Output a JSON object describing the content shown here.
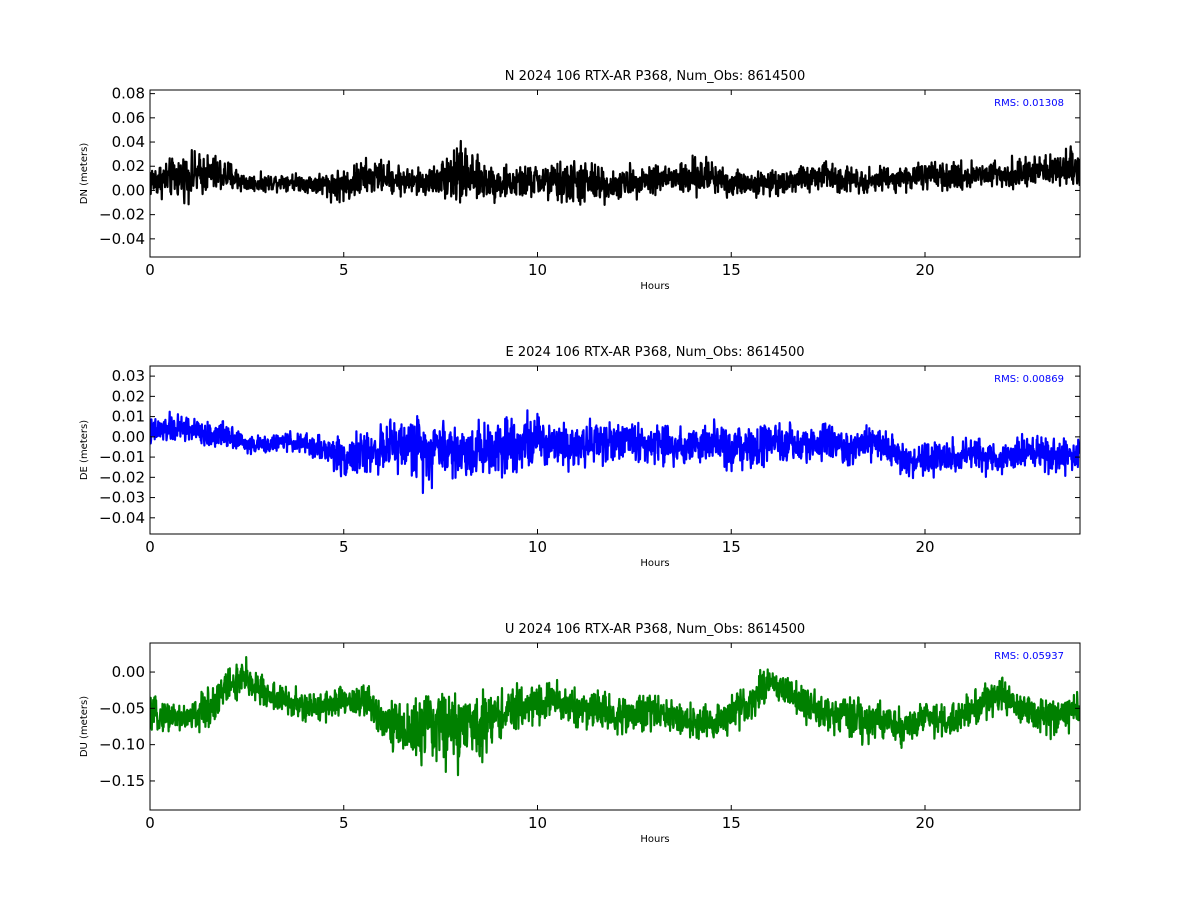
{
  "chart_data": [
    {
      "type": "line",
      "title": "N 2024 106 RTX-AR  P368, Num_Obs: 8614500",
      "xlabel": "Hours",
      "ylabel": "DN (meters)",
      "xlim": [
        0,
        24
      ],
      "ylim": [
        -0.055,
        0.083
      ],
      "xticks": [
        0,
        5,
        10,
        15,
        20
      ],
      "yticks": [
        -0.04,
        -0.02,
        0.0,
        0.02,
        0.04,
        0.06,
        0.08
      ],
      "ytick_labels": [
        "−0.04",
        "−0.02",
        "0.00",
        "0.02",
        "0.04",
        "0.06",
        "0.08"
      ],
      "annotation": "RMS:  0.01308",
      "color": "#000000",
      "series": [
        {
          "x": [
            0,
            0.5,
            1,
            1.5,
            2,
            2.5,
            3,
            3.5,
            4,
            4.5,
            5,
            5.5,
            6,
            6.5,
            7,
            7.5,
            7.9,
            8.3,
            9,
            9.5,
            10,
            10.5,
            11,
            11.5,
            12,
            12.5,
            13,
            13.5,
            14,
            14.5,
            15,
            15.5,
            16,
            16.5,
            17,
            17.5,
            18,
            18.5,
            19,
            19.5,
            20,
            20.5,
            21,
            21.5,
            22,
            22.5,
            23,
            23.5,
            24
          ],
          "mean": [
            0.008,
            0.01,
            0.012,
            0.014,
            0.012,
            0.006,
            0.006,
            0.008,
            0.006,
            0.005,
            0.004,
            0.01,
            0.012,
            0.008,
            0.006,
            0.01,
            0.015,
            0.01,
            0.006,
            0.006,
            0.008,
            0.006,
            0.006,
            0.006,
            0.004,
            0.008,
            0.01,
            0.01,
            0.01,
            0.012,
            0.006,
            0.006,
            0.006,
            0.008,
            0.01,
            0.012,
            0.01,
            0.008,
            0.01,
            0.01,
            0.012,
            0.01,
            0.012,
            0.014,
            0.014,
            0.014,
            0.016,
            0.018,
            0.02
          ],
          "amplitude": [
            0.02,
            0.022,
            0.026,
            0.024,
            0.02,
            0.01,
            0.01,
            0.01,
            0.01,
            0.015,
            0.02,
            0.022,
            0.018,
            0.018,
            0.016,
            0.018,
            0.045,
            0.025,
            0.02,
            0.018,
            0.02,
            0.024,
            0.028,
            0.024,
            0.016,
            0.018,
            0.018,
            0.018,
            0.022,
            0.022,
            0.016,
            0.014,
            0.014,
            0.014,
            0.016,
            0.018,
            0.016,
            0.014,
            0.014,
            0.014,
            0.016,
            0.016,
            0.016,
            0.016,
            0.016,
            0.016,
            0.018,
            0.018,
            0.024
          ]
        }
      ]
    },
    {
      "type": "line",
      "title": "E 2024 106 RTX-AR  P368, Num_Obs: 8614500",
      "xlabel": "Hours",
      "ylabel": "DE (meters)",
      "xlim": [
        0,
        24
      ],
      "ylim": [
        -0.048,
        0.035
      ],
      "xticks": [
        0,
        5,
        10,
        15,
        20
      ],
      "yticks": [
        -0.04,
        -0.03,
        -0.02,
        -0.01,
        0.0,
        0.01,
        0.02,
        0.03
      ],
      "ytick_labels": [
        "−0.04",
        "−0.03",
        "−0.02",
        "−0.01",
        "0.00",
        "0.01",
        "0.02",
        "0.03"
      ],
      "annotation": "RMS:  0.00869",
      "color": "#0000ff",
      "series": [
        {
          "x": [
            0,
            0.5,
            1,
            1.5,
            2,
            2.5,
            3,
            3.5,
            4,
            4.5,
            5,
            5.5,
            6,
            6.5,
            7,
            7.5,
            8,
            8.5,
            9,
            9.5,
            10,
            10.5,
            11,
            11.5,
            12,
            12.5,
            13,
            13.5,
            14,
            14.5,
            15,
            15.5,
            16,
            16.5,
            17,
            17.5,
            18,
            18.5,
            19,
            19.5,
            20,
            20.5,
            21,
            21.5,
            22,
            22.5,
            23,
            23.5,
            24
          ],
          "mean": [
            0.002,
            0.004,
            0.004,
            0.0,
            0.002,
            -0.004,
            -0.004,
            -0.002,
            -0.004,
            -0.006,
            -0.01,
            -0.008,
            -0.006,
            -0.004,
            -0.006,
            -0.004,
            -0.008,
            -0.006,
            -0.004,
            -0.002,
            -0.002,
            -0.002,
            -0.004,
            -0.002,
            -0.002,
            -0.002,
            -0.004,
            -0.004,
            -0.004,
            -0.004,
            -0.006,
            -0.006,
            -0.004,
            -0.004,
            -0.004,
            -0.002,
            -0.006,
            -0.004,
            -0.004,
            -0.012,
            -0.012,
            -0.01,
            -0.01,
            -0.01,
            -0.01,
            -0.008,
            -0.008,
            -0.01,
            -0.01
          ],
          "amplitude": [
            0.01,
            0.01,
            0.01,
            0.008,
            0.01,
            0.006,
            0.006,
            0.006,
            0.008,
            0.01,
            0.014,
            0.014,
            0.016,
            0.018,
            0.024,
            0.02,
            0.02,
            0.02,
            0.02,
            0.02,
            0.018,
            0.016,
            0.016,
            0.016,
            0.014,
            0.014,
            0.014,
            0.014,
            0.014,
            0.014,
            0.016,
            0.014,
            0.014,
            0.014,
            0.014,
            0.014,
            0.012,
            0.012,
            0.012,
            0.012,
            0.012,
            0.012,
            0.012,
            0.012,
            0.012,
            0.012,
            0.012,
            0.012,
            0.012
          ]
        }
      ]
    },
    {
      "type": "line",
      "title": "U 2024 106 RTX-AR  P368, Num_Obs: 8614500",
      "xlabel": "Hours",
      "ylabel": "DU (meters)",
      "xlim": [
        0,
        24
      ],
      "ylim": [
        -0.19,
        0.04
      ],
      "xticks": [
        0,
        5,
        10,
        15,
        20
      ],
      "yticks": [
        -0.15,
        -0.1,
        -0.05,
        0.0
      ],
      "ytick_labels": [
        "−0.15",
        "−0.10",
        "−0.05",
        "0.00"
      ],
      "annotation": "RMS:  0.05937",
      "color": "#008000",
      "series": [
        {
          "x": [
            0,
            0.5,
            1,
            1.5,
            2,
            2.5,
            3,
            3.5,
            4,
            4.5,
            5,
            5.5,
            6,
            6.5,
            7,
            7.5,
            8,
            8.5,
            9,
            9.5,
            10,
            10.5,
            11,
            11.5,
            12,
            12.5,
            13,
            13.5,
            14,
            14.5,
            15,
            15.5,
            16,
            16.5,
            17,
            17.5,
            18,
            18.5,
            19,
            19.5,
            20,
            20.5,
            21,
            21.5,
            22,
            22.5,
            23,
            23.5,
            24
          ],
          "mean": [
            -0.06,
            -0.06,
            -0.065,
            -0.05,
            -0.02,
            -0.01,
            -0.03,
            -0.04,
            -0.05,
            -0.045,
            -0.04,
            -0.04,
            -0.06,
            -0.08,
            -0.08,
            -0.07,
            -0.08,
            -0.07,
            -0.06,
            -0.05,
            -0.04,
            -0.04,
            -0.05,
            -0.05,
            -0.06,
            -0.06,
            -0.05,
            -0.06,
            -0.07,
            -0.07,
            -0.06,
            -0.04,
            -0.01,
            -0.03,
            -0.05,
            -0.06,
            -0.06,
            -0.07,
            -0.07,
            -0.08,
            -0.06,
            -0.07,
            -0.06,
            -0.04,
            -0.03,
            -0.05,
            -0.06,
            -0.06,
            -0.05
          ],
          "amplitude": [
            0.03,
            0.03,
            0.03,
            0.04,
            0.04,
            0.04,
            0.03,
            0.03,
            0.03,
            0.03,
            0.03,
            0.04,
            0.04,
            0.05,
            0.07,
            0.07,
            0.08,
            0.06,
            0.05,
            0.04,
            0.04,
            0.04,
            0.04,
            0.04,
            0.035,
            0.035,
            0.035,
            0.035,
            0.035,
            0.035,
            0.035,
            0.035,
            0.03,
            0.03,
            0.035,
            0.035,
            0.04,
            0.04,
            0.035,
            0.035,
            0.035,
            0.035,
            0.035,
            0.035,
            0.035,
            0.035,
            0.035,
            0.035,
            0.03
          ]
        }
      ]
    }
  ]
}
